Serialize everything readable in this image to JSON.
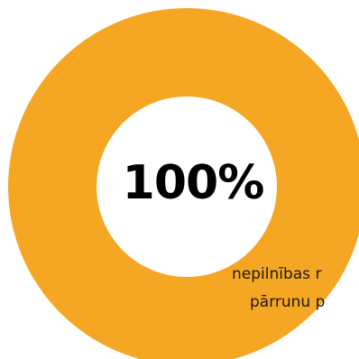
{
  "chart_data": {
    "type": "pie",
    "style": "donut",
    "center_label": "100%",
    "value_percent": 100,
    "ring_color": "#F5A623",
    "caption_lines": [
      "nepilnības r",
      "pārrunu p"
    ]
  }
}
